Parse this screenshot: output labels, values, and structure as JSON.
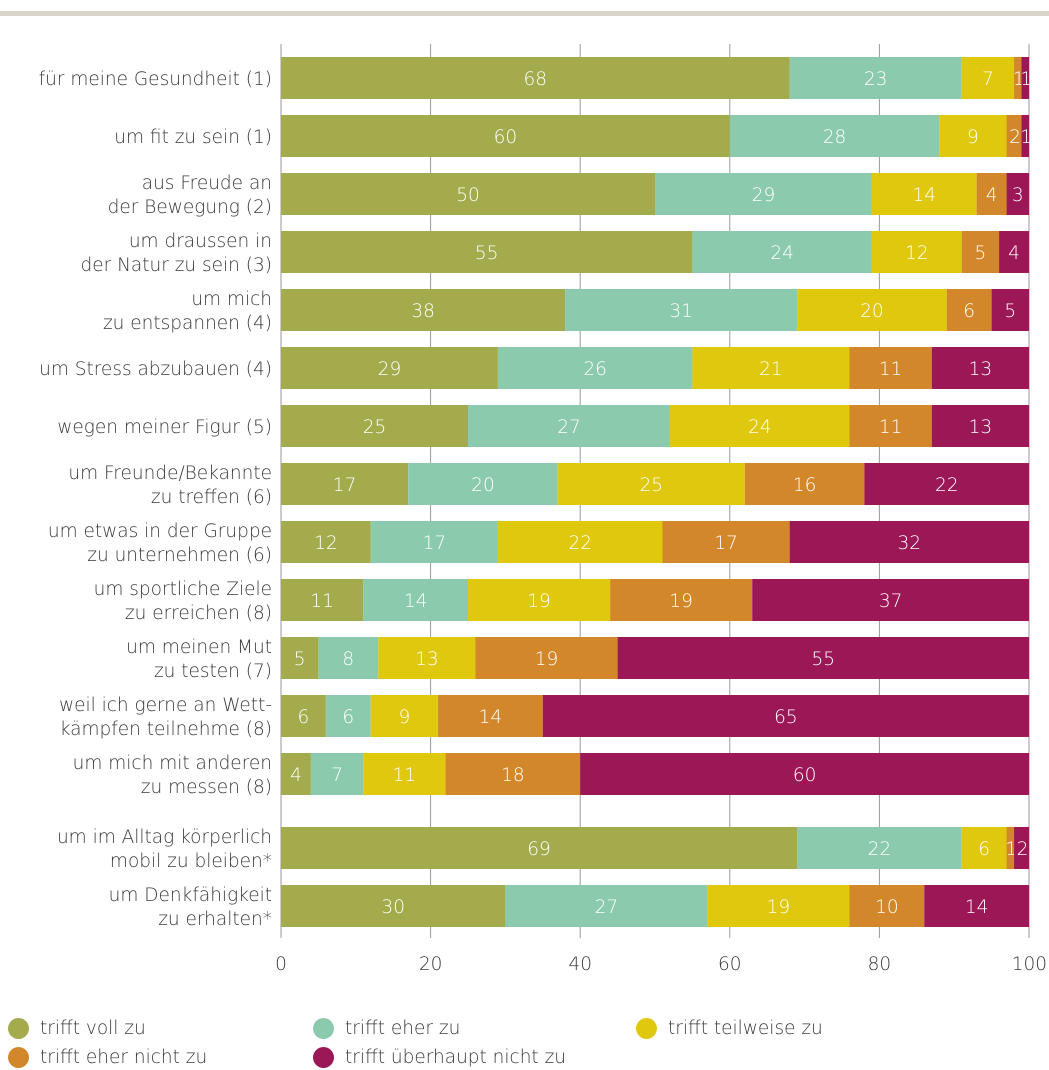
{
  "chart_data": {
    "type": "bar",
    "orientation": "horizontal",
    "stacked": true,
    "title": "",
    "xlabel": "",
    "ylabel": "",
    "xlim": [
      0,
      100
    ],
    "x_ticks": [
      0,
      20,
      40,
      60,
      80,
      100
    ],
    "grid": "vertical",
    "legend_position": "bottom",
    "categories": [
      [
        "für meine Gesundheit (1)"
      ],
      [
        "um fit zu sein (1)"
      ],
      [
        "aus Freude an",
        "der Bewegung (2)"
      ],
      [
        "um draussen in",
        "der Natur zu sein (3)"
      ],
      [
        "um mich",
        "zu entspannen (4)"
      ],
      [
        "um Stress abzubauen (4)"
      ],
      [
        "wegen meiner Figur (5)"
      ],
      [
        "um Freunde/Bekannte",
        "zu treffen (6)"
      ],
      [
        "um etwas in der Gruppe",
        "zu unternehmen (6)"
      ],
      [
        "um sportliche Ziele",
        "zu erreichen (8)"
      ],
      [
        "um meinen Mut",
        "zu testen (7)"
      ],
      [
        "weil ich gerne an Wett-",
        "kämpfen teilnehme (8)"
      ],
      [
        "um mich mit anderen",
        "zu messen (8)"
      ],
      [
        "um im Alltag körperlich",
        "mobil zu bleiben*"
      ],
      [
        "um Denkfähigkeit",
        "zu erhalten*"
      ]
    ],
    "series": [
      {
        "name": "trifft voll zu",
        "color": "#a3ab4d",
        "values": [
          68,
          60,
          50,
          55,
          38,
          29,
          25,
          17,
          12,
          11,
          5,
          6,
          4,
          69,
          30
        ]
      },
      {
        "name": "trifft eher zu",
        "color": "#8ccaae",
        "values": [
          23,
          28,
          29,
          24,
          31,
          26,
          27,
          20,
          17,
          14,
          8,
          6,
          7,
          22,
          27
        ]
      },
      {
        "name": "trifft teilweise zu",
        "color": "#dfc80e",
        "values": [
          7,
          9,
          14,
          12,
          20,
          21,
          24,
          25,
          22,
          19,
          13,
          9,
          11,
          6,
          19
        ]
      },
      {
        "name": "trifft eher nicht zu",
        "color": "#d3872b",
        "values": [
          1,
          2,
          4,
          5,
          6,
          11,
          11,
          16,
          17,
          19,
          19,
          14,
          18,
          1,
          10
        ]
      },
      {
        "name": "trifft überhaupt nicht zu",
        "color": "#9c1756",
        "values": [
          1,
          1,
          3,
          4,
          5,
          13,
          13,
          22,
          32,
          37,
          55,
          65,
          60,
          2,
          14
        ]
      }
    ]
  }
}
